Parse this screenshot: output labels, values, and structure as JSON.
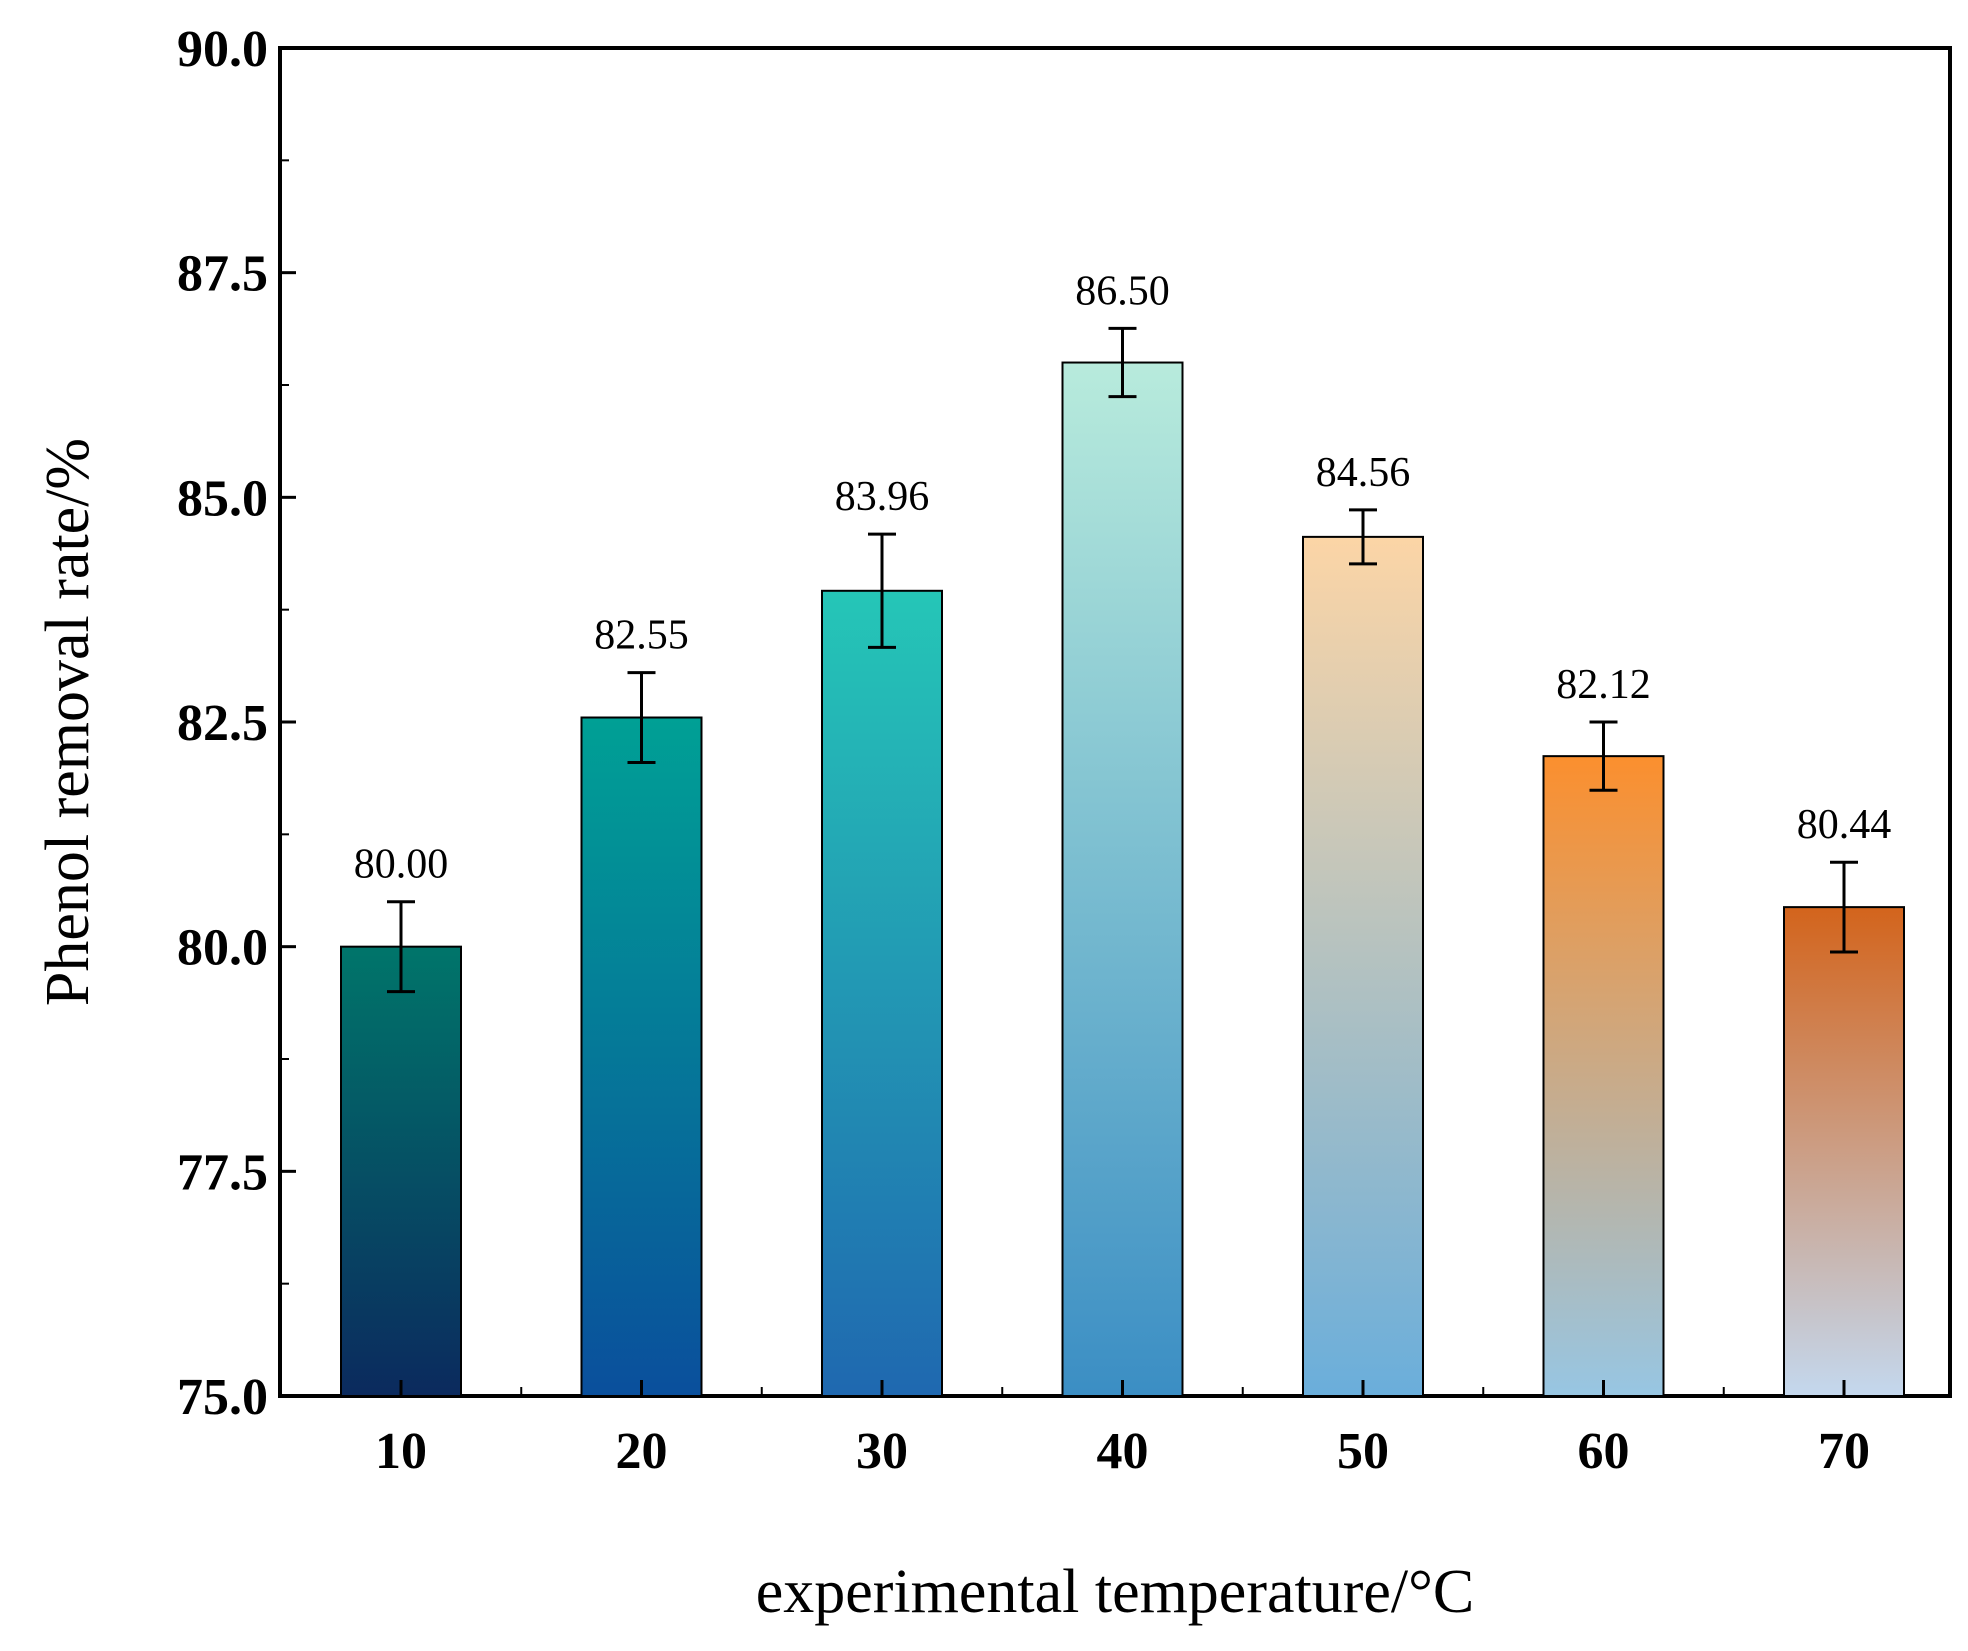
{
  "chart_data": {
    "type": "bar",
    "title": "",
    "xlabel": "experimental temperature/°C",
    "ylabel": "Phenol removal rate/%",
    "categories": [
      "10",
      "20",
      "30",
      "40",
      "50",
      "60",
      "70"
    ],
    "values": [
      80.0,
      82.55,
      83.96,
      86.5,
      84.56,
      82.12,
      80.44
    ],
    "value_labels": [
      "80.00",
      "82.55",
      "83.96",
      "86.50",
      "84.56",
      "82.12",
      "80.44"
    ],
    "error": [
      0.5,
      0.5,
      0.63,
      0.38,
      0.3,
      0.38,
      0.5
    ],
    "ylim": [
      75.0,
      90.0
    ],
    "yticks": [
      "75.0",
      "77.5",
      "80.0",
      "82.5",
      "85.0",
      "87.5",
      "90.0"
    ],
    "grid": false,
    "bar_gradients": [
      [
        "#00756a",
        "#0b2a5e"
      ],
      [
        "#00a095",
        "#0a4f9c"
      ],
      [
        "#25c6b7",
        "#1f68b0"
      ],
      [
        "#b8ebdc",
        "#3b8ec4"
      ],
      [
        "#fcd5a6",
        "#6aaedb"
      ],
      [
        "#fb8f2e",
        "#97c6e3"
      ],
      [
        "#d3641c",
        "#c4d8ee"
      ]
    ]
  }
}
